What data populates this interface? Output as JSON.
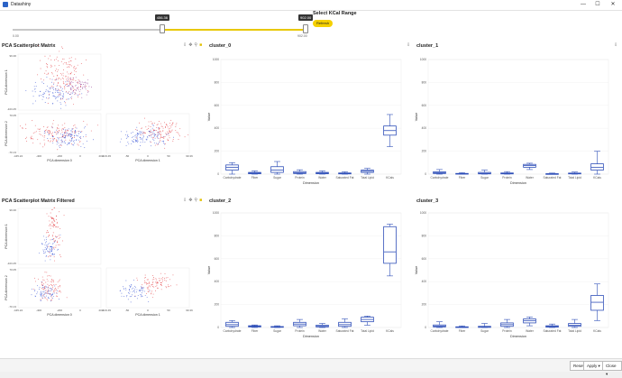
{
  "window": {
    "title": "Datashiny",
    "minimize": "—",
    "maximize": "☐",
    "close": "✕"
  },
  "slider": {
    "title": "Select KCal Range",
    "refresh_label": "Refresh",
    "min_label": "0.00",
    "max_label": "902.00",
    "low_tip": "456.36",
    "high_tip": "902.00",
    "low_fraction": 0.51,
    "high_fraction": 1.0
  },
  "toolbar_icons": [
    "download-icon",
    "pan-icon",
    "zoom-icon",
    "lock-icon"
  ],
  "scatter_panels": [
    {
      "title": "PCA Scatterplot Matrix",
      "filtered": false,
      "x_tick_dim0": [
        "-445.24",
        "-400",
        "-200",
        "0",
        "200"
      ],
      "x_tick_dim1": [
        "-103.45",
        "-50",
        "0",
        "50",
        "99.36"
      ],
      "xlabel_dim0": "PCA dimension 0",
      "xlabel_dim1": "PCA dimension 1",
      "ylabel_dim1": "PCA dimension 1",
      "ylabel_dim2": "PCA dimension 2",
      "y_top_ticks": [
        "99.36",
        "-103.45"
      ],
      "y_bot_ticks": [
        "70.05",
        "-70.13"
      ]
    },
    {
      "title": "PCA Scatterplot Matrix Filtered",
      "filtered": true,
      "x_tick_dim0": [
        "-445.24",
        "-400",
        "-200",
        "0",
        "200"
      ],
      "x_tick_dim1": [
        "-103.45",
        "-50",
        "0",
        "50",
        "99.36"
      ],
      "xlabel_dim0": "PCA dimension 0",
      "xlabel_dim1": "PCA dimension 1",
      "ylabel_dim1": "PCA dimension 1",
      "ylabel_dim2": "PCA dimension 2",
      "y_top_ticks": [
        "99.36",
        "-103.45"
      ],
      "y_bot_ticks": [
        "70.05",
        "-70.13"
      ]
    }
  ],
  "chart_data": [
    {
      "type": "box",
      "title": "cluster_0",
      "xlabel": "Dimension",
      "ylabel": "Value",
      "ylim": [
        0,
        1000
      ],
      "yticks": [
        0,
        200,
        400,
        600,
        800,
        1000
      ],
      "categories": [
        "Carbohydrate",
        "Fiber",
        "Sugar",
        "Protein",
        "Water",
        "Saturated Fat",
        "Total Lipid",
        "KCals"
      ],
      "boxes": [
        {
          "min": 0,
          "q1": 35,
          "median": 60,
          "q3": 80,
          "max": 100
        },
        {
          "min": 0,
          "q1": 3,
          "median": 8,
          "q3": 15,
          "max": 28
        },
        {
          "min": 0,
          "q1": 15,
          "median": 35,
          "q3": 65,
          "max": 110
        },
        {
          "min": 0,
          "q1": 5,
          "median": 12,
          "q3": 22,
          "max": 38
        },
        {
          "min": 0,
          "q1": 3,
          "median": 8,
          "q3": 15,
          "max": 28
        },
        {
          "min": 0,
          "q1": 2,
          "median": 5,
          "q3": 10,
          "max": 20
        },
        {
          "min": 0,
          "q1": 15,
          "median": 25,
          "q3": 35,
          "max": 50
        },
        {
          "min": 240,
          "q1": 340,
          "median": 380,
          "q3": 420,
          "max": 520
        }
      ]
    },
    {
      "type": "box",
      "title": "cluster_1",
      "xlabel": "Dimension",
      "ylabel": "Value",
      "ylim": [
        0,
        1000
      ],
      "yticks": [
        0,
        200,
        400,
        600,
        800,
        1000
      ],
      "categories": [
        "Carbohydrate",
        "Fiber",
        "Sugar",
        "Protein",
        "Water",
        "Saturated Fat",
        "Total Lipid",
        "KCals"
      ],
      "boxes": [
        {
          "min": 0,
          "q1": 5,
          "median": 12,
          "q3": 20,
          "max": 40
        },
        {
          "min": 0,
          "q1": 1,
          "median": 3,
          "q3": 6,
          "max": 12
        },
        {
          "min": 0,
          "q1": 2,
          "median": 6,
          "q3": 15,
          "max": 35
        },
        {
          "min": 0,
          "q1": 2,
          "median": 5,
          "q3": 10,
          "max": 22
        },
        {
          "min": 40,
          "q1": 60,
          "median": 75,
          "q3": 85,
          "max": 95
        },
        {
          "min": 0,
          "q1": 1,
          "median": 2,
          "q3": 4,
          "max": 9
        },
        {
          "min": 0,
          "q1": 2,
          "median": 5,
          "q3": 9,
          "max": 18
        },
        {
          "min": 0,
          "q1": 35,
          "median": 60,
          "q3": 90,
          "max": 200
        }
      ]
    },
    {
      "type": "box",
      "title": "cluster_2",
      "xlabel": "Dimension",
      "ylabel": "Value",
      "ylim": [
        0,
        1000
      ],
      "yticks": [
        0,
        200,
        400,
        600,
        800,
        1000
      ],
      "categories": [
        "Carbohydrate",
        "Fiber",
        "Sugar",
        "Protein",
        "Water",
        "Saturated Fat",
        "Total Lipid",
        "KCals"
      ],
      "boxes": [
        {
          "min": 0,
          "q1": 10,
          "median": 25,
          "q3": 45,
          "max": 60
        },
        {
          "min": 0,
          "q1": 5,
          "median": 10,
          "q3": 15,
          "max": 22
        },
        {
          "min": 0,
          "q1": 2,
          "median": 4,
          "q3": 8,
          "max": 15
        },
        {
          "min": 0,
          "q1": 15,
          "median": 30,
          "q3": 45,
          "max": 70
        },
        {
          "min": 0,
          "q1": 5,
          "median": 10,
          "q3": 20,
          "max": 35
        },
        {
          "min": 0,
          "q1": 10,
          "median": 25,
          "q3": 45,
          "max": 75
        },
        {
          "min": 20,
          "q1": 50,
          "median": 70,
          "q3": 90,
          "max": 100
        },
        {
          "min": 450,
          "q1": 560,
          "median": 660,
          "q3": 880,
          "max": 902
        }
      ]
    },
    {
      "type": "box",
      "title": "cluster_3",
      "xlabel": "Dimension",
      "ylabel": "Value",
      "ylim": [
        0,
        1000
      ],
      "yticks": [
        0,
        200,
        400,
        600,
        800,
        1000
      ],
      "categories": [
        "Carbohydrate",
        "Fiber",
        "Sugar",
        "Protein",
        "Water",
        "Saturated Fat",
        "Total Lipid",
        "KCals"
      ],
      "boxes": [
        {
          "min": 0,
          "q1": 5,
          "median": 12,
          "q3": 22,
          "max": 50
        },
        {
          "min": 0,
          "q1": 1,
          "median": 3,
          "q3": 6,
          "max": 14
        },
        {
          "min": 0,
          "q1": 1,
          "median": 4,
          "q3": 10,
          "max": 35
        },
        {
          "min": 0,
          "q1": 10,
          "median": 25,
          "q3": 40,
          "max": 70
        },
        {
          "min": 15,
          "q1": 40,
          "median": 60,
          "q3": 75,
          "max": 92
        },
        {
          "min": 0,
          "q1": 3,
          "median": 8,
          "q3": 15,
          "max": 30
        },
        {
          "min": 0,
          "q1": 10,
          "median": 20,
          "q3": 35,
          "max": 70
        },
        {
          "min": 60,
          "q1": 150,
          "median": 220,
          "q3": 280,
          "max": 380
        }
      ]
    }
  ],
  "bottom_buttons": {
    "reset": "Reset",
    "apply": "Apply ▾",
    "close": "Close ▾"
  },
  "colors": {
    "box": "#2f4fb8",
    "red": "#e0242a",
    "blue": "#1f3fd0",
    "purple": "#8a2a8a",
    "accent": "#f5d000"
  }
}
